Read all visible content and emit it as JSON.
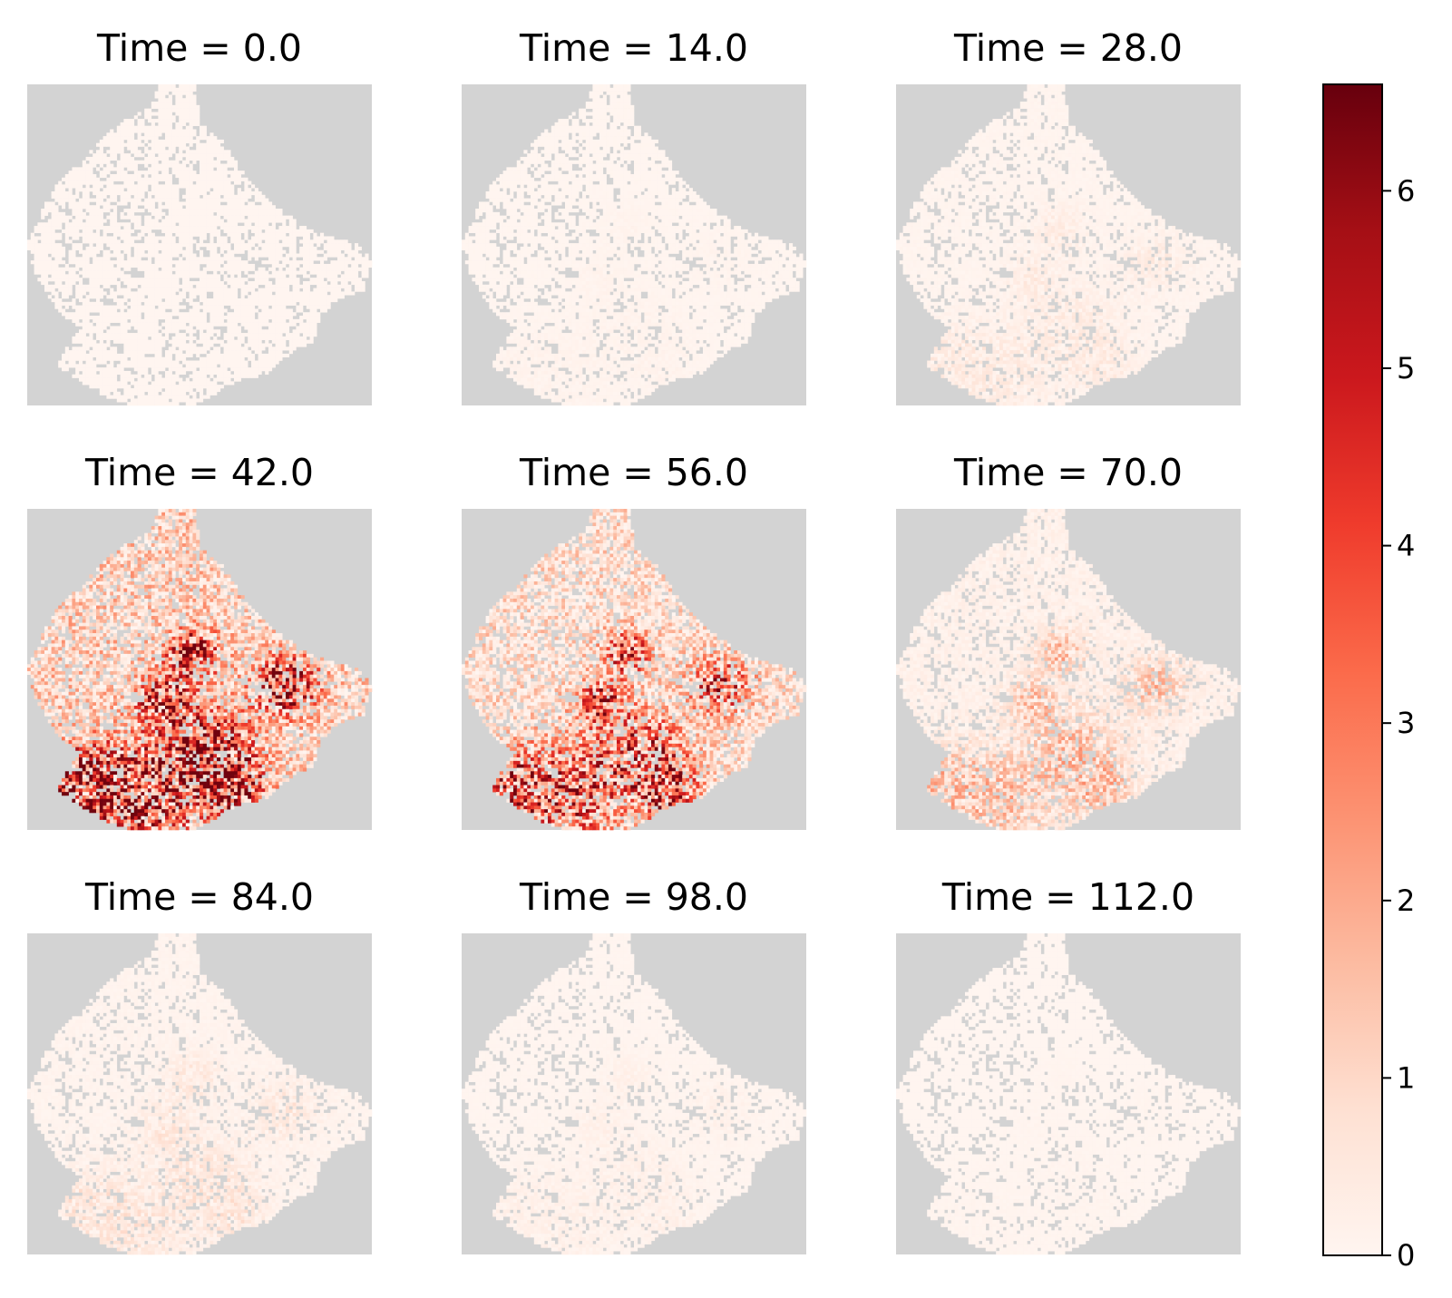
{
  "chart_data": {
    "type": "heatmap",
    "layout": "3x3 small multiples",
    "colormap": "Reds",
    "background_color": "#d3d3d3",
    "colorbar": {
      "range": [
        0,
        6.6
      ],
      "ticks": [
        0,
        1,
        2,
        3,
        4,
        5,
        6
      ],
      "tick_labels": [
        "0",
        "1",
        "2",
        "3",
        "4",
        "5",
        "6"
      ]
    },
    "grid": false,
    "panels": [
      {
        "time": 0.0,
        "title": "Time = 0.0",
        "intensity": 0.0
      },
      {
        "time": 14.0,
        "title": "Time = 14.0",
        "intensity": 0.02
      },
      {
        "time": 28.0,
        "title": "Time = 28.0",
        "intensity": 0.08
      },
      {
        "time": 42.0,
        "title": "Time = 42.0",
        "intensity": 1.0
      },
      {
        "time": 56.0,
        "title": "Time = 56.0",
        "intensity": 0.75
      },
      {
        "time": 70.0,
        "title": "Time = 70.0",
        "intensity": 0.32
      },
      {
        "time": 84.0,
        "title": "Time = 84.0",
        "intensity": 0.12
      },
      {
        "time": 98.0,
        "title": "Time = 98.0",
        "intensity": 0.04
      },
      {
        "time": 112.0,
        "title": "Time = 112.0",
        "intensity": 0.01
      }
    ]
  }
}
